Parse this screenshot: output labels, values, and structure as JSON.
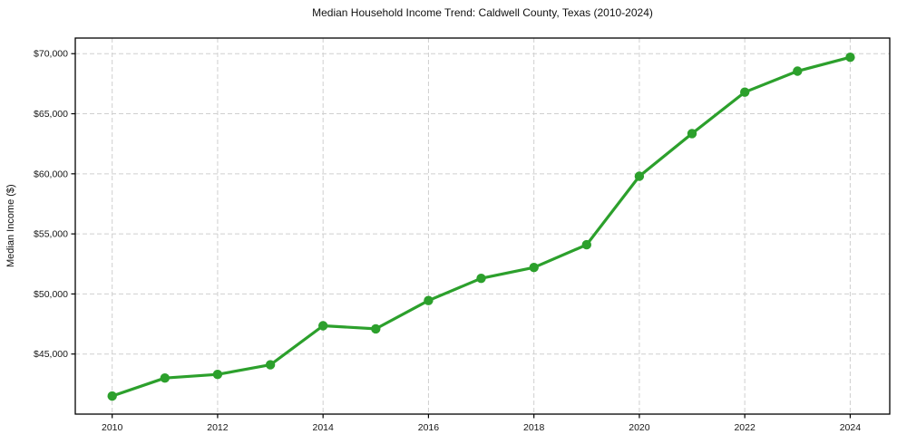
{
  "chart_data": {
    "type": "line",
    "title": "Median Household Income Trend: Caldwell County, Texas (2010-2024)",
    "xlabel": "",
    "ylabel": "Median Income ($)",
    "series": [
      {
        "name": "Median household income",
        "x": [
          2010,
          2011,
          2012,
          2013,
          2014,
          2015,
          2016,
          2017,
          2018,
          2019,
          2020,
          2021,
          2022,
          2023,
          2024
        ],
        "values": [
          41500,
          43000,
          43300,
          44100,
          47350,
          47100,
          49450,
          51300,
          52200,
          54100,
          59800,
          63350,
          66800,
          68550,
          69700
        ]
      }
    ],
    "line_color": "#2ca02c",
    "marker": "circle",
    "marker_radius": 5.2,
    "grid": true,
    "grid_style": "dashed",
    "grid_color": "#cfcfcf",
    "legend": false,
    "xlim": [
      2009.3,
      2024.75
    ],
    "ylim": [
      40000,
      71300
    ],
    "x_ticks": [
      2010,
      2012,
      2014,
      2016,
      2018,
      2020,
      2022,
      2024
    ],
    "x_tick_labels": [
      "2010",
      "2012",
      "2014",
      "2016",
      "2018",
      "2020",
      "2022",
      "2024"
    ],
    "y_ticks": [
      45000,
      50000,
      55000,
      60000,
      65000,
      70000
    ],
    "y_tick_labels": [
      "$45,000",
      "$50,000",
      "$55,000",
      "$60,000",
      "$65,000",
      "$70,000"
    ]
  }
}
